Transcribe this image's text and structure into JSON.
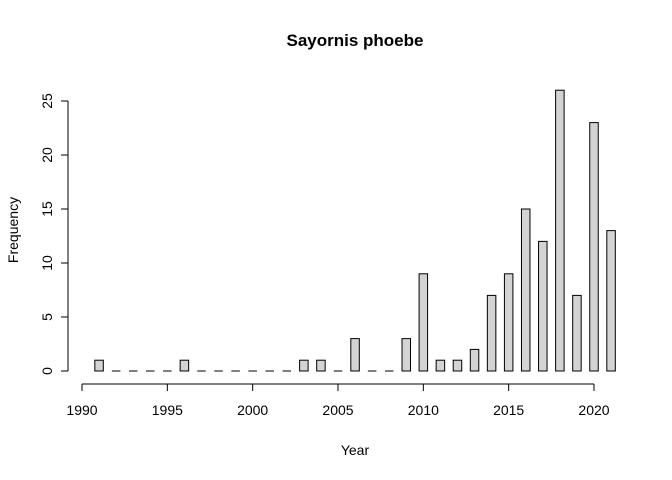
{
  "chart_data": {
    "type": "bar",
    "title": "Sayornis phoebe",
    "xlabel": "Year",
    "ylabel": "Frequency",
    "xlim": [
      1990,
      2021
    ],
    "ylim": [
      0,
      26
    ],
    "x_ticks": [
      1990,
      1995,
      2000,
      2005,
      2010,
      2015,
      2020
    ],
    "y_ticks": [
      0,
      5,
      10,
      15,
      20,
      25
    ],
    "bar_color": "#d3d3d3",
    "grid": false,
    "x": [
      1991,
      1992,
      1993,
      1994,
      1995,
      1996,
      1997,
      1998,
      1999,
      2000,
      2001,
      2002,
      2003,
      2004,
      2005,
      2006,
      2007,
      2008,
      2009,
      2010,
      2011,
      2012,
      2013,
      2014,
      2015,
      2016,
      2017,
      2018,
      2019,
      2020,
      2021
    ],
    "values": [
      1,
      0,
      0,
      0,
      0,
      1,
      0,
      0,
      0,
      0,
      0,
      0,
      1,
      1,
      0,
      3,
      0,
      0,
      3,
      9,
      1,
      1,
      2,
      7,
      9,
      15,
      12,
      26,
      7,
      23,
      13
    ]
  }
}
